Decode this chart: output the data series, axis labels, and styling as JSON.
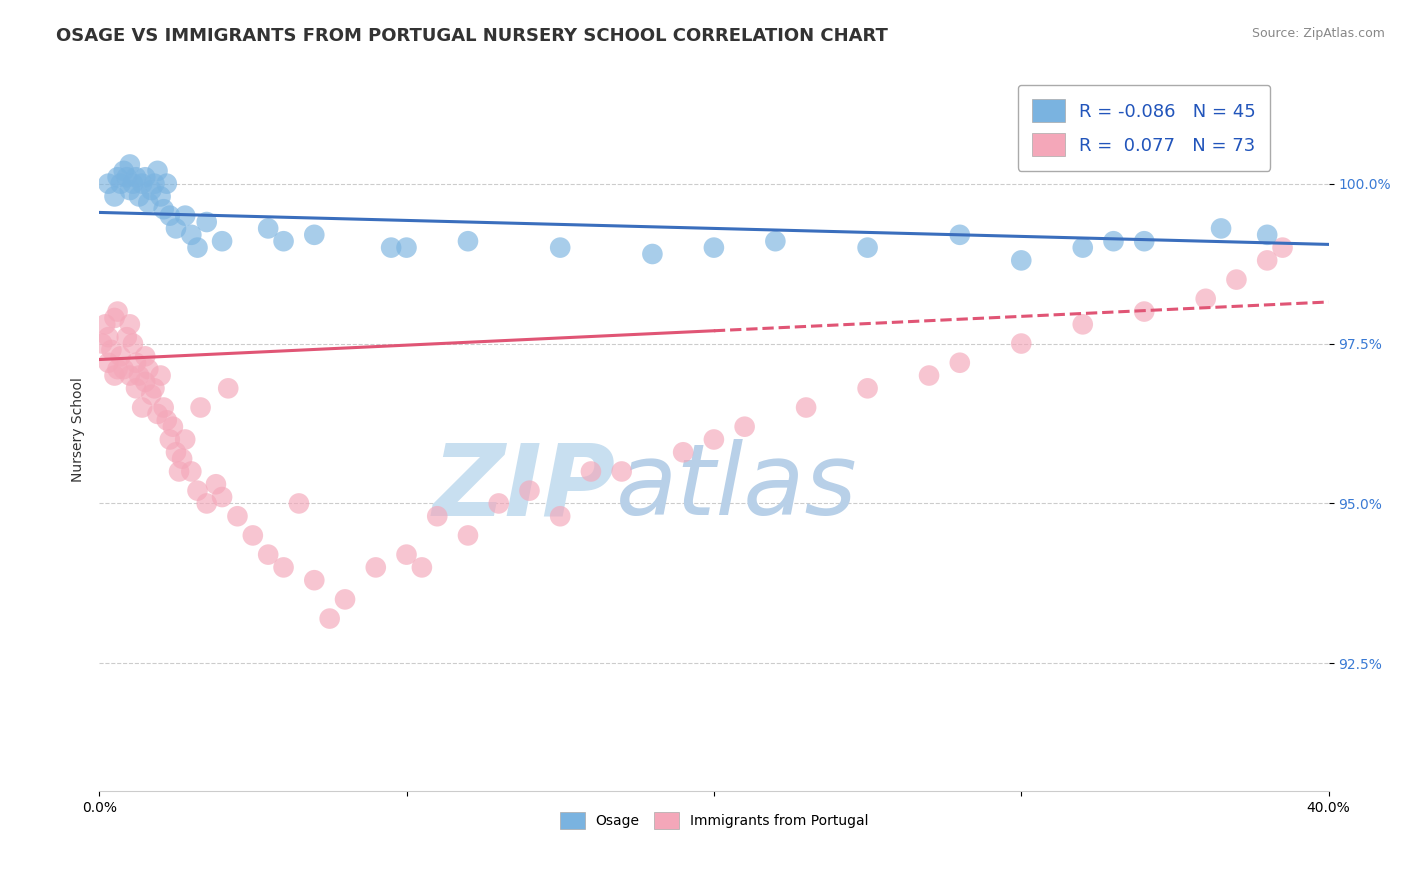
{
  "title": "OSAGE VS IMMIGRANTS FROM PORTUGAL NURSERY SCHOOL CORRELATION CHART",
  "source": "Source: ZipAtlas.com",
  "ylabel": "Nursery School",
  "xlim": [
    0.0,
    40.0
  ],
  "ylim": [
    90.5,
    101.8
  ],
  "yticks": [
    92.5,
    95.0,
    97.5,
    100.0
  ],
  "ytick_labels": [
    "92.5%",
    "95.0%",
    "97.5%",
    "100.0%"
  ],
  "blue_R": -0.086,
  "blue_N": 45,
  "pink_R": 0.077,
  "pink_N": 73,
  "blue_color": "#7ab3e0",
  "pink_color": "#f4a7b9",
  "blue_line_color": "#3a6ebd",
  "pink_line_color": "#e05575",
  "grid_color": "#cccccc",
  "background_color": "#ffffff",
  "watermark_zip": "ZIP",
  "watermark_atlas": "atlas",
  "watermark_color_zip": "#c8dff0",
  "watermark_color_atlas": "#b8d0e8",
  "blue_line_x0": 0.0,
  "blue_line_y0": 99.55,
  "blue_line_x1": 40.0,
  "blue_line_y1": 99.05,
  "pink_line_x0": 0.0,
  "pink_line_y0": 97.25,
  "pink_line_x1": 40.0,
  "pink_line_y1": 98.15,
  "pink_solid_end": 20.0,
  "pink_dash_start": 20.0,
  "blue_scatter_x": [
    0.3,
    0.5,
    0.6,
    0.7,
    0.8,
    0.9,
    1.0,
    1.0,
    1.1,
    1.2,
    1.3,
    1.4,
    1.5,
    1.6,
    1.7,
    1.8,
    1.9,
    2.0,
    2.1,
    2.2,
    2.3,
    2.5,
    2.8,
    3.0,
    3.5,
    4.0,
    5.5,
    7.0,
    9.5,
    12.0,
    15.0,
    18.0,
    22.0,
    25.0,
    28.0,
    30.0,
    32.0,
    34.0,
    36.5,
    38.0,
    3.2,
    6.0,
    10.0,
    20.0,
    33.0
  ],
  "blue_scatter_y": [
    100.0,
    99.8,
    100.1,
    100.0,
    100.2,
    100.1,
    99.9,
    100.3,
    100.0,
    100.1,
    99.8,
    100.0,
    100.1,
    99.7,
    99.9,
    100.0,
    100.2,
    99.8,
    99.6,
    100.0,
    99.5,
    99.3,
    99.5,
    99.2,
    99.4,
    99.1,
    99.3,
    99.2,
    99.0,
    99.1,
    99.0,
    98.9,
    99.1,
    99.0,
    99.2,
    98.8,
    99.0,
    99.1,
    99.3,
    99.2,
    99.0,
    99.1,
    99.0,
    99.0,
    99.1
  ],
  "pink_scatter_x": [
    0.1,
    0.2,
    0.3,
    0.3,
    0.4,
    0.5,
    0.5,
    0.6,
    0.6,
    0.7,
    0.8,
    0.9,
    1.0,
    1.0,
    1.1,
    1.2,
    1.2,
    1.3,
    1.4,
    1.5,
    1.5,
    1.6,
    1.7,
    1.8,
    1.9,
    2.0,
    2.1,
    2.2,
    2.3,
    2.4,
    2.5,
    2.6,
    2.7,
    2.8,
    3.0,
    3.2,
    3.5,
    3.8,
    4.0,
    4.5,
    5.0,
    5.5,
    6.0,
    7.0,
    8.0,
    9.0,
    10.0,
    11.0,
    12.0,
    13.0,
    14.0,
    15.0,
    17.0,
    19.0,
    20.0,
    21.0,
    23.0,
    25.0,
    27.0,
    28.0,
    30.0,
    32.0,
    34.0,
    36.0,
    37.0,
    38.0,
    38.5,
    7.5,
    3.3,
    4.2,
    6.5,
    10.5,
    16.0
  ],
  "pink_scatter_y": [
    97.5,
    97.8,
    97.2,
    97.6,
    97.4,
    97.0,
    97.9,
    97.1,
    98.0,
    97.3,
    97.1,
    97.6,
    97.8,
    97.0,
    97.5,
    97.2,
    96.8,
    97.0,
    96.5,
    97.3,
    96.9,
    97.1,
    96.7,
    96.8,
    96.4,
    97.0,
    96.5,
    96.3,
    96.0,
    96.2,
    95.8,
    95.5,
    95.7,
    96.0,
    95.5,
    95.2,
    95.0,
    95.3,
    95.1,
    94.8,
    94.5,
    94.2,
    94.0,
    93.8,
    93.5,
    94.0,
    94.2,
    94.8,
    94.5,
    95.0,
    95.2,
    94.8,
    95.5,
    95.8,
    96.0,
    96.2,
    96.5,
    96.8,
    97.0,
    97.2,
    97.5,
    97.8,
    98.0,
    98.2,
    98.5,
    98.8,
    99.0,
    93.2,
    96.5,
    96.8,
    95.0,
    94.0,
    95.5
  ],
  "title_fontsize": 13,
  "source_fontsize": 9,
  "legend_fontsize": 13,
  "axis_label_fontsize": 10,
  "tick_fontsize": 10
}
